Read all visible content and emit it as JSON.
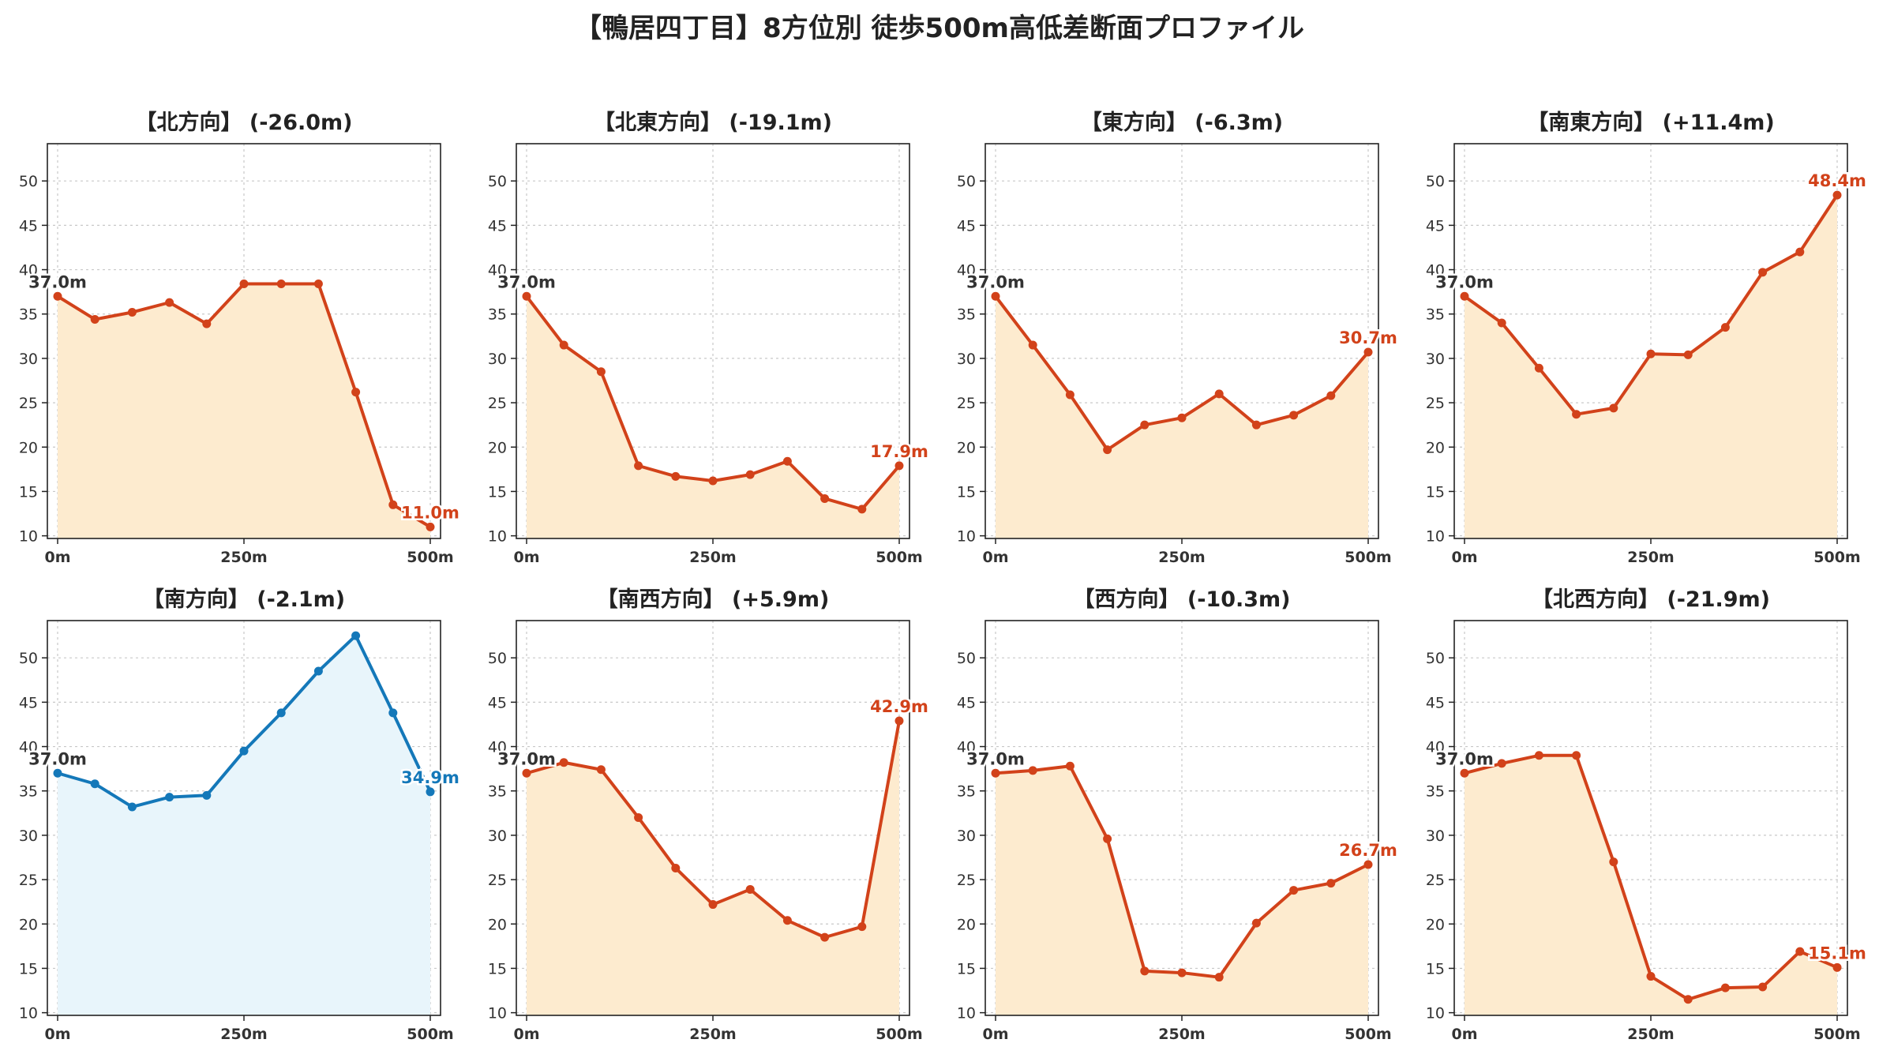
{
  "title": "【鴨居四丁目】8方位別 徒歩500m高低差断面プロファイル",
  "colors": {
    "down": "#d2421a",
    "down_fill": "#fdebcf",
    "up": "#1478b9",
    "up_fill": "#e8f5fb",
    "start_label": "#333333",
    "grid": "#c8c8c8"
  },
  "chart_data": [
    {
      "type": "area",
      "title": "【北方向】 (-26.0m)",
      "x": [
        0,
        50,
        100,
        150,
        200,
        250,
        300,
        350,
        400,
        450,
        500
      ],
      "y": [
        37.0,
        34.4,
        35.2,
        36.3,
        33.9,
        38.4,
        38.4,
        38.4,
        26.2,
        13.5,
        11.0
      ],
      "start_label": "37.0m",
      "end_label": "11.0m",
      "highlight": false,
      "xticks": [
        "0m",
        "250m",
        "500m"
      ],
      "yticks": [
        10,
        15,
        20,
        25,
        30,
        35,
        40,
        45,
        50
      ],
      "ylim": [
        10,
        54
      ],
      "xlim": [
        0,
        500
      ],
      "grid": true
    },
    {
      "type": "area",
      "title": "【北東方向】 (-19.1m)",
      "x": [
        0,
        50,
        100,
        150,
        200,
        250,
        300,
        350,
        400,
        450,
        500
      ],
      "y": [
        37.0,
        31.5,
        28.5,
        17.9,
        16.7,
        16.2,
        16.9,
        18.4,
        14.2,
        13.0,
        17.9
      ],
      "start_label": "37.0m",
      "end_label": "17.9m",
      "highlight": false,
      "xticks": [
        "0m",
        "250m",
        "500m"
      ],
      "yticks": [
        10,
        15,
        20,
        25,
        30,
        35,
        40,
        45,
        50
      ],
      "ylim": [
        10,
        54
      ],
      "xlim": [
        0,
        500
      ],
      "grid": true
    },
    {
      "type": "area",
      "title": "【東方向】 (-6.3m)",
      "x": [
        0,
        50,
        100,
        150,
        200,
        250,
        300,
        350,
        400,
        450,
        500
      ],
      "y": [
        37.0,
        31.5,
        25.9,
        19.7,
        22.5,
        23.3,
        26.0,
        22.5,
        23.6,
        25.8,
        30.7
      ],
      "start_label": "37.0m",
      "end_label": "30.7m",
      "highlight": false,
      "xticks": [
        "0m",
        "250m",
        "500m"
      ],
      "yticks": [
        10,
        15,
        20,
        25,
        30,
        35,
        40,
        45,
        50
      ],
      "ylim": [
        10,
        54
      ],
      "xlim": [
        0,
        500
      ],
      "grid": true
    },
    {
      "type": "area",
      "title": "【南東方向】 (+11.4m)",
      "x": [
        0,
        50,
        100,
        150,
        200,
        250,
        300,
        350,
        400,
        450,
        500
      ],
      "y": [
        37.0,
        34.0,
        28.9,
        23.7,
        24.4,
        30.5,
        30.4,
        33.5,
        39.7,
        42.0,
        48.4
      ],
      "start_label": "37.0m",
      "end_label": "48.4m",
      "highlight": false,
      "xticks": [
        "0m",
        "250m",
        "500m"
      ],
      "yticks": [
        10,
        15,
        20,
        25,
        30,
        35,
        40,
        45,
        50
      ],
      "ylim": [
        10,
        54
      ],
      "xlim": [
        0,
        500
      ],
      "grid": true
    },
    {
      "type": "area",
      "title": "【南方向】 (-2.1m)",
      "x": [
        0,
        50,
        100,
        150,
        200,
        250,
        300,
        350,
        400,
        450,
        500
      ],
      "y": [
        37.0,
        35.8,
        33.2,
        34.3,
        34.5,
        39.5,
        43.8,
        48.5,
        52.5,
        43.8,
        34.9
      ],
      "start_label": "37.0m",
      "end_label": "34.9m",
      "highlight": true,
      "xticks": [
        "0m",
        "250m",
        "500m"
      ],
      "yticks": [
        10,
        15,
        20,
        25,
        30,
        35,
        40,
        45,
        50
      ],
      "ylim": [
        10,
        54
      ],
      "xlim": [
        0,
        500
      ],
      "grid": true
    },
    {
      "type": "area",
      "title": "【南西方向】 (+5.9m)",
      "x": [
        0,
        50,
        100,
        150,
        200,
        250,
        300,
        350,
        400,
        450,
        500
      ],
      "y": [
        37.0,
        38.2,
        37.4,
        32.0,
        26.3,
        22.2,
        23.9,
        20.4,
        18.5,
        19.7,
        42.9
      ],
      "start_label": "37.0m",
      "end_label": "42.9m",
      "highlight": false,
      "xticks": [
        "0m",
        "250m",
        "500m"
      ],
      "yticks": [
        10,
        15,
        20,
        25,
        30,
        35,
        40,
        45,
        50
      ],
      "ylim": [
        10,
        54
      ],
      "xlim": [
        0,
        500
      ],
      "grid": true
    },
    {
      "type": "area",
      "title": "【西方向】 (-10.3m)",
      "x": [
        0,
        50,
        100,
        150,
        200,
        250,
        300,
        350,
        400,
        450,
        500
      ],
      "y": [
        37.0,
        37.3,
        37.8,
        29.6,
        14.7,
        14.5,
        14.0,
        20.1,
        23.8,
        24.6,
        26.7
      ],
      "start_label": "37.0m",
      "end_label": "26.7m",
      "highlight": false,
      "xticks": [
        "0m",
        "250m",
        "500m"
      ],
      "yticks": [
        10,
        15,
        20,
        25,
        30,
        35,
        40,
        45,
        50
      ],
      "ylim": [
        10,
        54
      ],
      "xlim": [
        0,
        500
      ],
      "grid": true
    },
    {
      "type": "area",
      "title": "【北西方向】 (-21.9m)",
      "x": [
        0,
        50,
        100,
        150,
        200,
        250,
        300,
        350,
        400,
        450,
        500
      ],
      "y": [
        37.0,
        38.1,
        39.0,
        39.0,
        27.0,
        14.1,
        11.5,
        12.8,
        12.9,
        16.9,
        15.1
      ],
      "start_label": "37.0m",
      "end_label": "15.1m",
      "highlight": false,
      "xticks": [
        "0m",
        "250m",
        "500m"
      ],
      "yticks": [
        10,
        15,
        20,
        25,
        30,
        35,
        40,
        45,
        50
      ],
      "ylim": [
        10,
        54
      ],
      "xlim": [
        0,
        500
      ],
      "grid": true
    }
  ]
}
